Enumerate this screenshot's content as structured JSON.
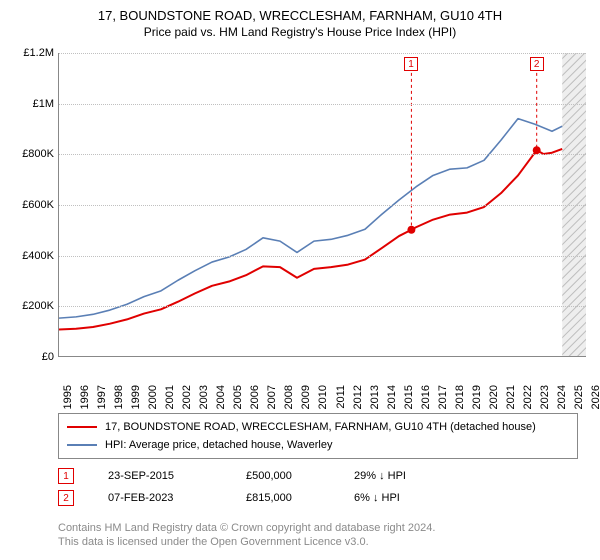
{
  "titles": {
    "main": "17, BOUNDSTONE ROAD, WRECCLESHAM, FARNHAM, GU10 4TH",
    "sub": "Price paid vs. HM Land Registry's House Price Index (HPI)"
  },
  "chart": {
    "type": "line",
    "background_color": "#ffffff",
    "grid_color": "#c0c0c0",
    "axis_color": "#888888",
    "x_years": [
      "1995",
      "1996",
      "1997",
      "1998",
      "1999",
      "2000",
      "2001",
      "2002",
      "2003",
      "2004",
      "2005",
      "2006",
      "2007",
      "2008",
      "2009",
      "2010",
      "2011",
      "2012",
      "2013",
      "2014",
      "2015",
      "2016",
      "2017",
      "2018",
      "2019",
      "2020",
      "2021",
      "2022",
      "2023",
      "2024",
      "2025",
      "2026"
    ],
    "xlim": [
      1995,
      2026
    ],
    "ylim": [
      0,
      1200000
    ],
    "ytick_step": 200000,
    "yticks": [
      "£0",
      "£200K",
      "£400K",
      "£600K",
      "£800K",
      "£1M",
      "£1.2M"
    ],
    "label_fontsize": 11,
    "shaded_future": {
      "from_year": 2024.6,
      "to_year": 2026,
      "fill": "#eeeeee",
      "hatch": true
    },
    "series": [
      {
        "name": "price_paid",
        "label": "17, BOUNDSTONE ROAD, WRECCLESHAM, FARNHAM, GU10 4TH (detached house)",
        "color": "#e00000",
        "line_width": 2,
        "points": [
          [
            1995,
            105000
          ],
          [
            1996,
            108000
          ],
          [
            1997,
            115000
          ],
          [
            1998,
            128000
          ],
          [
            1999,
            145000
          ],
          [
            2000,
            168000
          ],
          [
            2001,
            185000
          ],
          [
            2002,
            215000
          ],
          [
            2003,
            248000
          ],
          [
            2004,
            278000
          ],
          [
            2005,
            295000
          ],
          [
            2006,
            320000
          ],
          [
            2007,
            355000
          ],
          [
            2008,
            352000
          ],
          [
            2009,
            310000
          ],
          [
            2010,
            345000
          ],
          [
            2011,
            352000
          ],
          [
            2012,
            362000
          ],
          [
            2013,
            382000
          ],
          [
            2014,
            428000
          ],
          [
            2015,
            475000
          ],
          [
            2015.73,
            500000
          ],
          [
            2016,
            510000
          ],
          [
            2017,
            540000
          ],
          [
            2018,
            560000
          ],
          [
            2019,
            568000
          ],
          [
            2020,
            590000
          ],
          [
            2021,
            645000
          ],
          [
            2022,
            715000
          ],
          [
            2023.1,
            815000
          ],
          [
            2023.5,
            800000
          ],
          [
            2024,
            805000
          ],
          [
            2024.6,
            820000
          ]
        ]
      },
      {
        "name": "hpi",
        "label": "HPI: Average price, detached house, Waverley",
        "color": "#5a7fb5",
        "line_width": 1.6,
        "points": [
          [
            1995,
            150000
          ],
          [
            1996,
            155000
          ],
          [
            1997,
            165000
          ],
          [
            1998,
            182000
          ],
          [
            1999,
            205000
          ],
          [
            2000,
            235000
          ],
          [
            2001,
            258000
          ],
          [
            2002,
            300000
          ],
          [
            2003,
            338000
          ],
          [
            2004,
            372000
          ],
          [
            2005,
            392000
          ],
          [
            2006,
            422000
          ],
          [
            2007,
            468000
          ],
          [
            2008,
            455000
          ],
          [
            2009,
            410000
          ],
          [
            2010,
            455000
          ],
          [
            2011,
            462000
          ],
          [
            2012,
            478000
          ],
          [
            2013,
            502000
          ],
          [
            2014,
            562000
          ],
          [
            2015,
            618000
          ],
          [
            2016,
            670000
          ],
          [
            2017,
            715000
          ],
          [
            2018,
            740000
          ],
          [
            2019,
            745000
          ],
          [
            2020,
            775000
          ],
          [
            2021,
            855000
          ],
          [
            2022,
            940000
          ],
          [
            2023,
            918000
          ],
          [
            2024,
            890000
          ],
          [
            2024.6,
            910000
          ]
        ]
      }
    ],
    "sale_markers": [
      {
        "id": "1",
        "year": 2015.73,
        "price": 500000
      },
      {
        "id": "2",
        "year": 2023.1,
        "price": 815000
      }
    ]
  },
  "legend": {
    "rows": [
      {
        "color": "#e00000",
        "label": "17, BOUNDSTONE ROAD, WRECCLESHAM, FARNHAM, GU10 4TH (detached house)"
      },
      {
        "color": "#5a7fb5",
        "label": "HPI: Average price, detached house, Waverley"
      }
    ]
  },
  "marker_rows": [
    {
      "id": "1",
      "date": "23-SEP-2015",
      "price": "£500,000",
      "delta": "29% ↓ HPI"
    },
    {
      "id": "2",
      "date": "07-FEB-2023",
      "price": "£815,000",
      "delta": "6% ↓ HPI"
    }
  ],
  "footer": {
    "line1": "Contains HM Land Registry data © Crown copyright and database right 2024.",
    "line2": "This data is licensed under the Open Government Licence v3.0."
  }
}
